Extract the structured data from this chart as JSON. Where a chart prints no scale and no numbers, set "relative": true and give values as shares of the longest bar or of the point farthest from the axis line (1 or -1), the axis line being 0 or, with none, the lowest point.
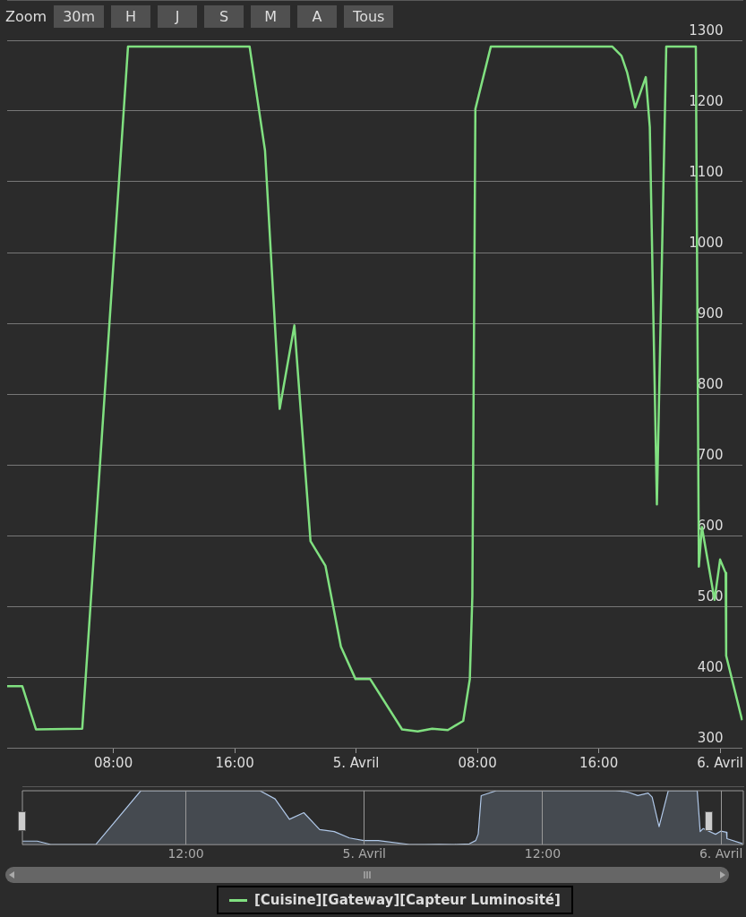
{
  "chart_data": [
    {
      "type": "line",
      "annotations": [
        "Zoom",
        "30m",
        "H",
        "J",
        "S",
        "M",
        "A",
        "Tous"
      ],
      "x": [
        "--04-04T01:00",
        "--04-04T02:00",
        "--04-04T02:54",
        "--04-04T05:57",
        "--04-04T08:58",
        "--04-04T16:59",
        "--04-04T18:00",
        "--04-04T18:58",
        "--04-04T19:56",
        "--04-04T21:00",
        "--04-04T21:59",
        "--04-04T23:00",
        "--04-04T23:58",
        "--04-05T00:56",
        "--04-05T03:02",
        "--04-05T04:04",
        "--04-05T05:01",
        "--04-05T06:03",
        "--04-05T07:04",
        "--04-05T07:30",
        "--04-05T07:40",
        "--04-05T07:52",
        "--04-05T08:53",
        "--04-05T16:54",
        "--04-05T17:30",
        "--04-05T17:52",
        "--04-05T18:24",
        "--04-05T19:06",
        "--04-05T19:22",
        "--04-05T19:50",
        "--04-05T20:27",
        "--04-05T22:24",
        "--04-05T22:36",
        "--04-05T22:48",
        "--04-05T23:38",
        "--04-06T00:00",
        "--04-06T00:22",
        "--04-06T00:24",
        "--04-06T01:27"
      ],
      "series": [
        {
          "name": "[Cuisine][Gateway][Capteur Luminosité]",
          "color": "#80e080",
          "values": [
            387,
            387,
            326,
            327,
            1291,
            1291,
            1144,
            779,
            897,
            592,
            557,
            443,
            397,
            397,
            326,
            323,
            327,
            325,
            338,
            397,
            514,
            1203,
            1291,
            1291,
            1278,
            1255,
            1205,
            1248,
            1177,
            644,
            1291,
            1291,
            556,
            612,
            509,
            566,
            547,
            430,
            339
          ]
        }
      ],
      "xlim": [
        "--04-04T01:00",
        "--04-06T01:30"
      ],
      "xticks": [
        {
          "value": "--04-04T08:00",
          "label": "08:00"
        },
        {
          "value": "--04-04T16:00",
          "label": "16:00"
        },
        {
          "value": "--04-05T00:00",
          "label": "5. Avril"
        },
        {
          "value": "--04-05T08:00",
          "label": "08:00"
        },
        {
          "value": "--04-05T16:00",
          "label": "16:00"
        },
        {
          "value": "--04-06T00:00",
          "label": "6. Avril"
        }
      ],
      "ylim": [
        300,
        1300
      ],
      "yticks": [
        300,
        400,
        500,
        600,
        700,
        800,
        900,
        1000,
        1100,
        1200,
        1300
      ],
      "grid": "y",
      "legend": "bottom",
      "marker": "none"
    },
    {
      "type": "area",
      "x": [
        "--04-04T01:00",
        "--04-04T02:00",
        "--04-04T02:54",
        "--04-04T05:57",
        "--04-04T08:58",
        "--04-04T16:59",
        "--04-04T18:00",
        "--04-04T18:58",
        "--04-04T19:56",
        "--04-04T21:00",
        "--04-04T21:59",
        "--04-04T23:00",
        "--04-04T23:58",
        "--04-05T00:56",
        "--04-05T03:02",
        "--04-05T04:04",
        "--04-05T05:01",
        "--04-05T06:03",
        "--04-05T07:04",
        "--04-05T07:30",
        "--04-05T07:40",
        "--04-05T07:52",
        "--04-05T08:53",
        "--04-05T16:54",
        "--04-05T17:30",
        "--04-05T17:52",
        "--04-05T18:24",
        "--04-05T19:06",
        "--04-05T19:22",
        "--04-05T19:50",
        "--04-05T20:27",
        "--04-05T22:24",
        "--04-05T22:36",
        "--04-05T22:48",
        "--04-05T23:38",
        "--04-06T00:00",
        "--04-06T00:22",
        "--04-06T00:24",
        "--04-06T01:27"
      ],
      "series": [
        {
          "color": "#b0c8e8",
          "values": [
            0.066,
            0.066,
            0.003,
            0.004,
            1,
            1,
            0.848,
            0.471,
            0.593,
            0.278,
            0.242,
            0.124,
            0.076,
            0.076,
            0.003,
            0,
            0.004,
            0.002,
            0.015,
            0.076,
            0.197,
            0.909,
            1,
            1,
            0.987,
            0.963,
            0.911,
            0.956,
            0.882,
            0.332,
            1,
            1,
            0.241,
            0.299,
            0.192,
            0.251,
            0.231,
            0.111,
            0.017
          ]
        }
      ],
      "xlim": [
        "--04-04T01:00",
        "--04-06T01:30"
      ],
      "xticks": [
        {
          "value": "--04-04T12:00",
          "label": "12:00"
        },
        {
          "value": "--04-05T00:00",
          "label": "5. Avril"
        },
        {
          "value": "--04-05T12:00",
          "label": "12:00"
        },
        {
          "value": "--04-06T00:00",
          "label": "6. Avril"
        }
      ],
      "relative": true,
      "tick_labels": "x",
      "grid": "x",
      "marker": "none"
    }
  ]
}
